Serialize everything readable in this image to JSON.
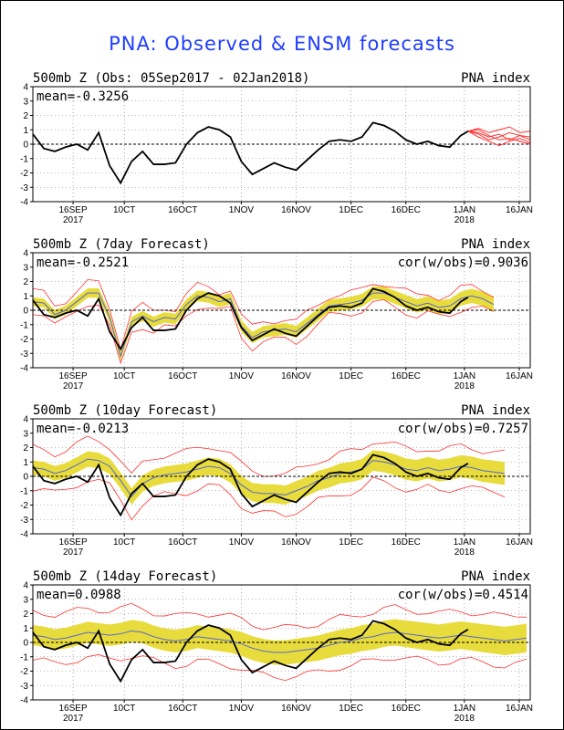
{
  "title": "PNA: Observed & ENSM forecasts",
  "colors": {
    "title": "#1f3dff",
    "observed": "#000000",
    "spread": "#e8dc3c",
    "ens_mean": "#5566cc",
    "members": "#ff3030"
  },
  "x_ticks": [
    {
      "day": 11,
      "label": "16SEP",
      "sub": "2017"
    },
    {
      "day": 25,
      "label": "10CT",
      "sub": ""
    },
    {
      "day": 41,
      "label": "16OCT",
      "sub": ""
    },
    {
      "day": 57,
      "label": "1NOV",
      "sub": ""
    },
    {
      "day": 72,
      "label": "16NOV",
      "sub": ""
    },
    {
      "day": 87,
      "label": "1DEC",
      "sub": ""
    },
    {
      "day": 102,
      "label": "16DEC",
      "sub": ""
    },
    {
      "day": 118,
      "label": "1JAN",
      "sub": "2018"
    },
    {
      "day": 133,
      "label": "16JAN",
      "sub": ""
    }
  ],
  "y_ticks": [
    "4",
    "3",
    "2",
    "1",
    "0",
    "-1",
    "-2",
    "-3",
    "-4"
  ],
  "chart_data": [
    {
      "type": "line",
      "title": "500mb  Z (Obs: 05Sep2017 - 02Jan2018)",
      "right_label": "PNA index",
      "mean_label": "mean=-0.3256",
      "cor_label": "",
      "ylim": [
        -4,
        4
      ],
      "xlim_days": [
        0,
        136
      ],
      "grid": true,
      "series": [
        {
          "role": "observed",
          "x": [
            0,
            3,
            6,
            9,
            12,
            15,
            18,
            21,
            24,
            27,
            30,
            33,
            36,
            39,
            42,
            45,
            48,
            51,
            54,
            57,
            60,
            63,
            66,
            69,
            72,
            75,
            78,
            81,
            84,
            87,
            90,
            93,
            96,
            99,
            102,
            105,
            108,
            111,
            114,
            117,
            119
          ],
          "y": [
            0.7,
            -0.3,
            -0.5,
            -0.2,
            0,
            -0.4,
            0.8,
            -1.5,
            -2.7,
            -1.2,
            -0.5,
            -1.4,
            -1.4,
            -1.3,
            0,
            0.8,
            1.2,
            1.0,
            0.5,
            -1.2,
            -2.1,
            -1.7,
            -1.3,
            -1.6,
            -1.8,
            -1.1,
            -0.4,
            0.2,
            0.3,
            0.2,
            0.5,
            1.5,
            1.3,
            0.9,
            0.3,
            0,
            0.2,
            -0.1,
            -0.2,
            0.6,
            0.9
          ]
        }
      ],
      "forecast_start_day": 119,
      "members_y": [
        [
          0.9,
          1.0,
          0.6,
          0.3,
          0.4,
          0.2,
          0.0
        ],
        [
          0.9,
          0.7,
          0.3,
          0.5,
          0.8,
          0.6,
          0.3
        ],
        [
          0.9,
          1.1,
          0.8,
          1.0,
          1.2,
          0.8,
          0.9
        ],
        [
          0.9,
          0.5,
          0.2,
          -0.1,
          0.2,
          0.4,
          0.1
        ],
        [
          0.9,
          0.8,
          0.5,
          0.7,
          0.3,
          0.6,
          0.5
        ]
      ]
    },
    {
      "type": "line",
      "title": "500mb  Z (7day Forecast)",
      "right_label": "PNA index",
      "mean_label": "mean=-0.2521",
      "cor_label": "cor(w/obs)=0.9036",
      "ylim": [
        -4,
        4
      ],
      "xlim_days": [
        0,
        136
      ],
      "grid": true,
      "series": [
        {
          "role": "observed",
          "x": [
            0,
            3,
            6,
            9,
            12,
            15,
            18,
            21,
            24,
            27,
            30,
            33,
            36,
            39,
            42,
            45,
            48,
            51,
            54,
            57,
            60,
            63,
            66,
            69,
            72,
            75,
            78,
            81,
            84,
            87,
            90,
            93,
            96,
            99,
            102,
            105,
            108,
            111,
            114,
            117,
            119
          ],
          "y": [
            0.7,
            -0.3,
            -0.5,
            -0.2,
            0,
            -0.4,
            0.8,
            -1.5,
            -2.7,
            -1.2,
            -0.5,
            -1.4,
            -1.4,
            -1.3,
            0,
            0.8,
            1.2,
            1.0,
            0.5,
            -1.2,
            -2.1,
            -1.7,
            -1.3,
            -1.6,
            -1.8,
            -1.1,
            -0.4,
            0.2,
            0.3,
            0.2,
            0.5,
            1.5,
            1.3,
            0.9,
            0.3,
            0,
            0.2,
            -0.1,
            -0.2,
            0.6,
            0.9
          ]
        },
        {
          "role": "ens_mean",
          "x": [
            0,
            3,
            6,
            9,
            12,
            15,
            18,
            21,
            24,
            27,
            30,
            33,
            36,
            39,
            42,
            45,
            48,
            51,
            54,
            57,
            60,
            63,
            66,
            69,
            72,
            75,
            78,
            81,
            84,
            87,
            90,
            93,
            96,
            99,
            102,
            105,
            108,
            111,
            114,
            117,
            120,
            123,
            126
          ],
          "y": [
            0.6,
            0.5,
            -0.3,
            0,
            0.6,
            1.2,
            1.2,
            -0.5,
            -3.2,
            -0.8,
            -0.4,
            -0.8,
            -0.5,
            -0.6,
            0.4,
            1.0,
            0.9,
            0.6,
            0.8,
            -1.1,
            -1.9,
            -1.5,
            -1.4,
            -1.3,
            -1.5,
            -0.9,
            -0.3,
            0.3,
            0.4,
            0.5,
            0.7,
            1.2,
            1.2,
            0.9,
            0.6,
            0.3,
            0.5,
            0.2,
            0.3,
            0.8,
            1.0,
            0.8,
            0.4
          ]
        }
      ],
      "spread": [
        0.5,
        0.3
      ],
      "members_spread": 0.7
    },
    {
      "type": "line",
      "title": "500mb  Z (10day Forecast)",
      "right_label": "PNA index",
      "mean_label": "mean=-0.0213",
      "cor_label": "cor(w/obs)=0.7257",
      "ylim": [
        -4,
        4
      ],
      "xlim_days": [
        0,
        136
      ],
      "grid": true,
      "series": [
        {
          "role": "observed",
          "x": [
            0,
            3,
            6,
            9,
            12,
            15,
            18,
            21,
            24,
            27,
            30,
            33,
            36,
            39,
            42,
            45,
            48,
            51,
            54,
            57,
            60,
            63,
            66,
            69,
            72,
            75,
            78,
            81,
            84,
            87,
            90,
            93,
            96,
            99,
            102,
            105,
            108,
            111,
            114,
            117,
            119
          ],
          "y": [
            0.7,
            -0.3,
            -0.5,
            -0.2,
            0,
            -0.4,
            0.8,
            -1.5,
            -2.7,
            -1.2,
            -0.5,
            -1.4,
            -1.4,
            -1.3,
            0,
            0.8,
            1.2,
            1.0,
            0.5,
            -1.2,
            -2.1,
            -1.7,
            -1.3,
            -1.6,
            -1.8,
            -1.1,
            -0.4,
            0.2,
            0.3,
            0.2,
            0.5,
            1.5,
            1.3,
            0.9,
            0.3,
            0,
            0.2,
            -0.1,
            -0.2,
            0.6,
            0.9
          ]
        },
        {
          "role": "ens_mean",
          "x": [
            0,
            3,
            6,
            9,
            12,
            15,
            18,
            21,
            24,
            27,
            30,
            33,
            36,
            39,
            42,
            45,
            48,
            51,
            54,
            57,
            60,
            63,
            66,
            69,
            72,
            75,
            78,
            81,
            84,
            87,
            90,
            93,
            96,
            99,
            102,
            105,
            108,
            111,
            114,
            117,
            120,
            123,
            126,
            129
          ],
          "y": [
            0.6,
            0.5,
            0.2,
            0.4,
            0.8,
            1.2,
            1.1,
            0.7,
            -0.3,
            -1.4,
            -0.5,
            -0.1,
            0.1,
            0.2,
            0.3,
            0.5,
            0.7,
            0.6,
            0.2,
            -0.6,
            -1.1,
            -1.2,
            -1.2,
            -1.3,
            -1.0,
            -0.7,
            -0.3,
            -0.1,
            0.2,
            0.3,
            0.5,
            1.1,
            1.0,
            0.8,
            0.5,
            0.4,
            0.6,
            0.4,
            0.5,
            0.7,
            0.6,
            0.4,
            0.3,
            0.2
          ]
        }
      ],
      "spread": [
        0.8,
        0.5
      ],
      "members_spread": 1.4
    },
    {
      "type": "line",
      "title": "500mb  Z (14day Forecast)",
      "right_label": "PNA index",
      "mean_label": "mean=0.0988",
      "cor_label": "cor(w/obs)=0.4514",
      "ylim": [
        -4,
        4
      ],
      "xlim_days": [
        0,
        136
      ],
      "grid": true,
      "series": [
        {
          "role": "observed",
          "x": [
            0,
            3,
            6,
            9,
            12,
            15,
            18,
            21,
            24,
            27,
            30,
            33,
            36,
            39,
            42,
            45,
            48,
            51,
            54,
            57,
            60,
            63,
            66,
            69,
            72,
            75,
            78,
            81,
            84,
            87,
            90,
            93,
            96,
            99,
            102,
            105,
            108,
            111,
            114,
            117,
            119
          ],
          "y": [
            0.7,
            -0.3,
            -0.5,
            -0.2,
            0,
            -0.4,
            0.8,
            -1.5,
            -2.7,
            -1.2,
            -0.5,
            -1.4,
            -1.4,
            -1.3,
            0,
            0.8,
            1.2,
            1.0,
            0.5,
            -1.2,
            -2.1,
            -1.7,
            -1.3,
            -1.6,
            -1.8,
            -1.1,
            -0.4,
            0.2,
            0.3,
            0.2,
            0.5,
            1.5,
            1.3,
            0.9,
            0.3,
            0,
            0.2,
            -0.1,
            -0.2,
            0.6,
            0.9
          ]
        },
        {
          "role": "ens_mean",
          "x": [
            0,
            3,
            6,
            9,
            12,
            15,
            18,
            21,
            24,
            27,
            30,
            33,
            36,
            39,
            42,
            45,
            48,
            51,
            54,
            57,
            60,
            63,
            66,
            69,
            72,
            75,
            78,
            81,
            84,
            87,
            90,
            93,
            96,
            99,
            102,
            105,
            108,
            111,
            114,
            117,
            120,
            123,
            126,
            129,
            132,
            135
          ],
          "y": [
            0.5,
            0.4,
            0.2,
            0.3,
            0.5,
            0.7,
            0.6,
            0.5,
            0.6,
            0.8,
            0.7,
            0.4,
            0.2,
            0.1,
            0.2,
            0.4,
            0.3,
            0.2,
            0.1,
            -0.1,
            -0.4,
            -0.6,
            -0.7,
            -0.7,
            -0.6,
            -0.5,
            -0.4,
            -0.2,
            0,
            0.1,
            0.3,
            0.4,
            0.6,
            0.7,
            0.6,
            0.5,
            0.4,
            0.3,
            0.4,
            0.5,
            0.4,
            0.3,
            0.2,
            0.1,
            0.2,
            0.3
          ]
        }
      ],
      "spread": [
        1.0,
        0.7
      ],
      "members_spread": 1.7
    }
  ]
}
